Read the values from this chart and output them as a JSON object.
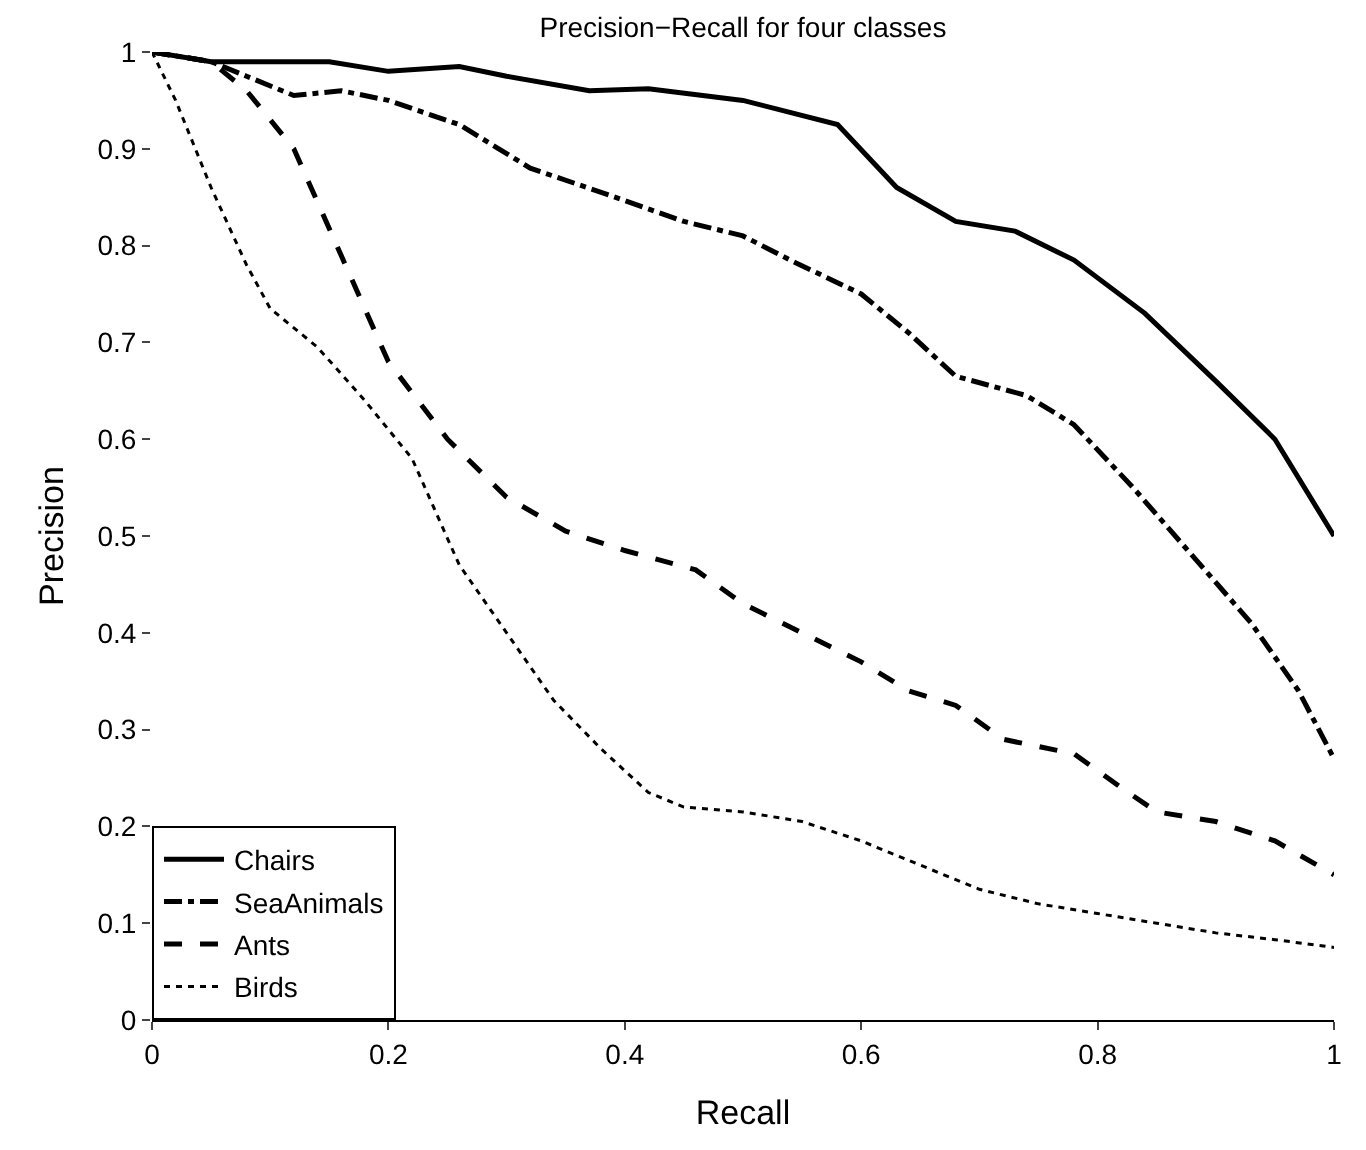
{
  "chart_data": {
    "type": "line",
    "title": "Precision−Recall for four classes",
    "xlabel": "Recall",
    "ylabel": "Precision",
    "xlim": [
      0,
      1
    ],
    "xticks": [
      0,
      0.2,
      0.4,
      0.6,
      0.8,
      1
    ],
    "ylim": [
      0,
      1
    ],
    "yticks": [
      0,
      0.1,
      0.2,
      0.3,
      0.4,
      0.5,
      0.6,
      0.7,
      0.8,
      0.9,
      1
    ],
    "legend": "bottom left",
    "marker": "none",
    "series": [
      {
        "name": "Chairs",
        "color": "#000000",
        "line_style": "solid",
        "x": [
          0,
          0.05,
          0.1,
          0.15,
          0.2,
          0.26,
          0.3,
          0.37,
          0.42,
          0.5,
          0.58,
          0.63,
          0.68,
          0.73,
          0.78,
          0.84,
          0.9,
          0.95,
          1
        ],
        "values": [
          1,
          0.99,
          0.99,
          0.99,
          0.98,
          0.985,
          0.975,
          0.96,
          0.962,
          0.95,
          0.925,
          0.86,
          0.825,
          0.815,
          0.785,
          0.73,
          0.66,
          0.6,
          0.5
        ]
      },
      {
        "name": "SeaAnimals",
        "color": "#000000",
        "line_style": "dashdot",
        "x": [
          0,
          0.05,
          0.08,
          0.12,
          0.16,
          0.2,
          0.26,
          0.32,
          0.38,
          0.45,
          0.5,
          0.54,
          0.6,
          0.64,
          0.68,
          0.74,
          0.78,
          0.83,
          0.88,
          0.93,
          0.97,
          1
        ],
        "values": [
          1,
          0.99,
          0.975,
          0.955,
          0.96,
          0.95,
          0.925,
          0.88,
          0.855,
          0.825,
          0.81,
          0.785,
          0.75,
          0.71,
          0.665,
          0.645,
          0.615,
          0.55,
          0.48,
          0.41,
          0.34,
          0.27
        ]
      },
      {
        "name": "Ants",
        "color": "#000000",
        "line_style": "dashed",
        "x": [
          0,
          0.05,
          0.08,
          0.12,
          0.16,
          0.2,
          0.25,
          0.3,
          0.35,
          0.4,
          0.46,
          0.5,
          0.55,
          0.6,
          0.64,
          0.68,
          0.72,
          0.78,
          0.82,
          0.85,
          0.9,
          0.95,
          1
        ],
        "values": [
          1,
          0.99,
          0.96,
          0.9,
          0.79,
          0.68,
          0.6,
          0.54,
          0.505,
          0.485,
          0.465,
          0.43,
          0.4,
          0.37,
          0.34,
          0.325,
          0.29,
          0.275,
          0.24,
          0.215,
          0.205,
          0.185,
          0.15
        ]
      },
      {
        "name": "Birds",
        "color": "#000000",
        "line_style": "dotted",
        "x": [
          0,
          0.02,
          0.05,
          0.08,
          0.1,
          0.14,
          0.18,
          0.22,
          0.26,
          0.3,
          0.34,
          0.38,
          0.42,
          0.45,
          0.5,
          0.55,
          0.6,
          0.65,
          0.7,
          0.75,
          0.8,
          0.85,
          0.9,
          0.95,
          1
        ],
        "values": [
          1,
          0.95,
          0.86,
          0.78,
          0.735,
          0.695,
          0.64,
          0.58,
          0.47,
          0.4,
          0.33,
          0.28,
          0.235,
          0.22,
          0.215,
          0.205,
          0.185,
          0.16,
          0.135,
          0.12,
          0.11,
          0.1,
          0.09,
          0.083,
          0.075
        ]
      }
    ]
  }
}
